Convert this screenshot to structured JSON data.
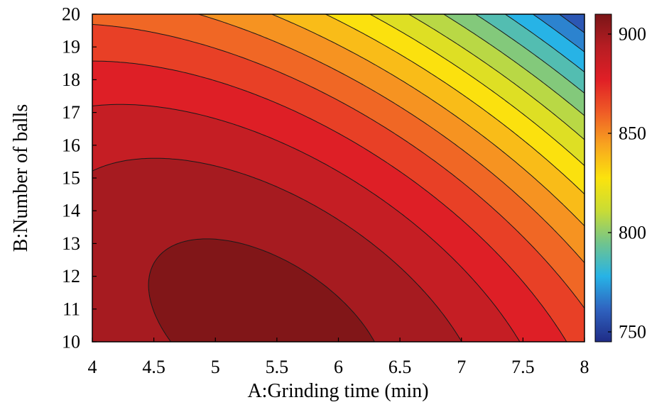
{
  "chart_data": {
    "type": "heatmap",
    "subtype": "filled-contour",
    "title": "",
    "xlabel": "A:Grinding time (min)",
    "ylabel": "B:Number of balls",
    "xlim": [
      4,
      8
    ],
    "ylim": [
      10,
      20
    ],
    "xticks": [
      "4",
      "4.5",
      "5",
      "5.5",
      "6",
      "6.5",
      "7",
      "7.5",
      "8"
    ],
    "yticks": [
      "10",
      "11",
      "12",
      "13",
      "14",
      "15",
      "16",
      "17",
      "18",
      "19",
      "20"
    ],
    "colorbar": {
      "min": 745,
      "max": 910,
      "ticks": [
        "750",
        "800",
        "850",
        "900"
      ],
      "colormap": [
        "#1f2c86",
        "#2f63c0",
        "#27b3e6",
        "#70c48e",
        "#c9dc35",
        "#fbe30d",
        "#f8a51f",
        "#ef5c26",
        "#e01f26",
        "#b71d23",
        "#7a1517"
      ]
    },
    "contour_levels": [
      753,
      763,
      773,
      783,
      793,
      803,
      813,
      823,
      833,
      843,
      853,
      863,
      873,
      883,
      893,
      903
    ],
    "surface_points": [
      {
        "x": 4.5,
        "y": 13,
        "z": 907
      },
      {
        "x": 4,
        "y": 10,
        "z": 893
      },
      {
        "x": 4,
        "y": 20,
        "z": 858
      },
      {
        "x": 8,
        "y": 13,
        "z": 848
      },
      {
        "x": 8,
        "y": 10,
        "z": 870
      },
      {
        "x": 8,
        "y": 20,
        "z": 752
      },
      {
        "x": 6,
        "y": 20,
        "z": 833
      },
      {
        "x": 6,
        "y": 13,
        "z": 892
      }
    ]
  }
}
